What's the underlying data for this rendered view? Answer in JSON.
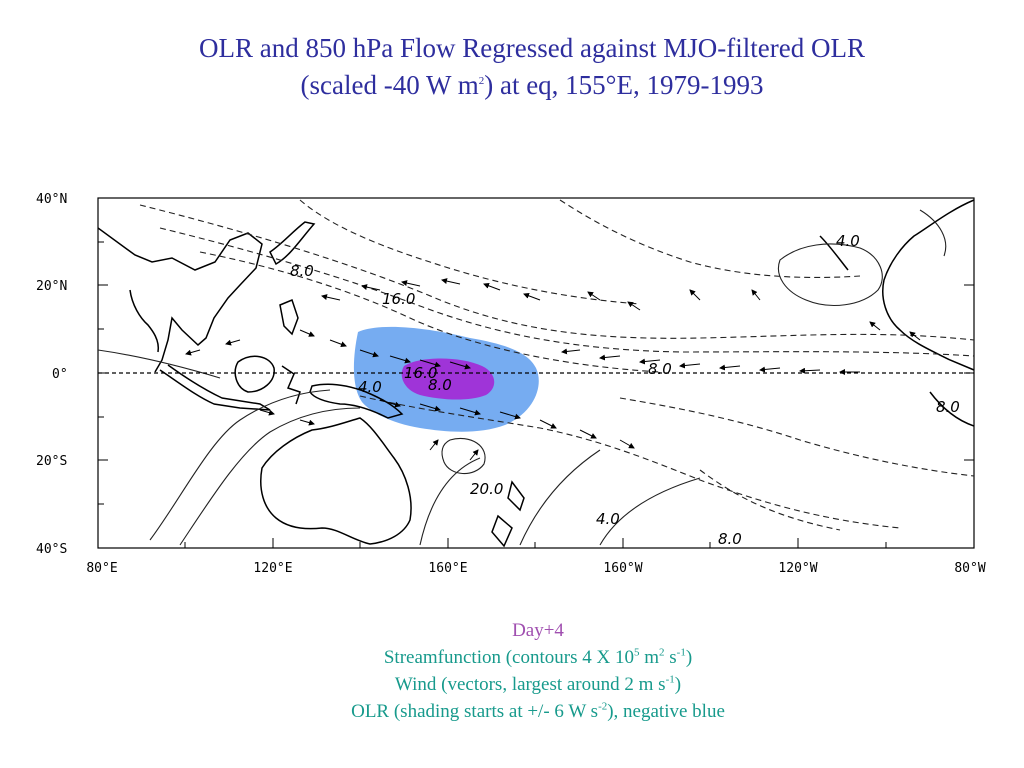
{
  "title": {
    "line1": "OLR and 850 hPa Flow Regressed against MJO-filtered OLR",
    "line2_pre": "(scaled -40 W m",
    "line2_sup": "2",
    "line2_post": ") at eq, 155°E, 1979-1993"
  },
  "map": {
    "lat_labels": [
      "40°N",
      "20°N",
      "0°",
      "20°S",
      "40°S"
    ],
    "lon_labels": [
      "80°E",
      "120°E",
      "160°E",
      "160°W",
      "120°W",
      "80°W"
    ],
    "contour_labels": [
      "16.0",
      "8.0",
      "4.0",
      "16.0",
      "8.0",
      "20.0",
      "4.0",
      "4.0",
      "8.0",
      "8.0",
      "8.0"
    ],
    "colors": {
      "negative_olr_weak": "#6fa8f0",
      "negative_olr_strong": "#a12dd6",
      "contour": "#222222",
      "coast": "#000000"
    }
  },
  "captions": {
    "day": "Day+4",
    "line1_a": "Streamfunction (contours 4 X 10",
    "line1_sup1": "5",
    "line1_b": " m",
    "line1_sup2": "2",
    "line1_c": " s",
    "line1_sup3": "-1",
    "line1_d": ")",
    "line2_a": "Wind (vectors, largest around 2 m s",
    "line2_sup": "-1",
    "line2_b": ")",
    "line3_a": "OLR (shading starts at +/- 6 W s",
    "line3_sup": "-2",
    "line3_b": "), negative blue"
  }
}
